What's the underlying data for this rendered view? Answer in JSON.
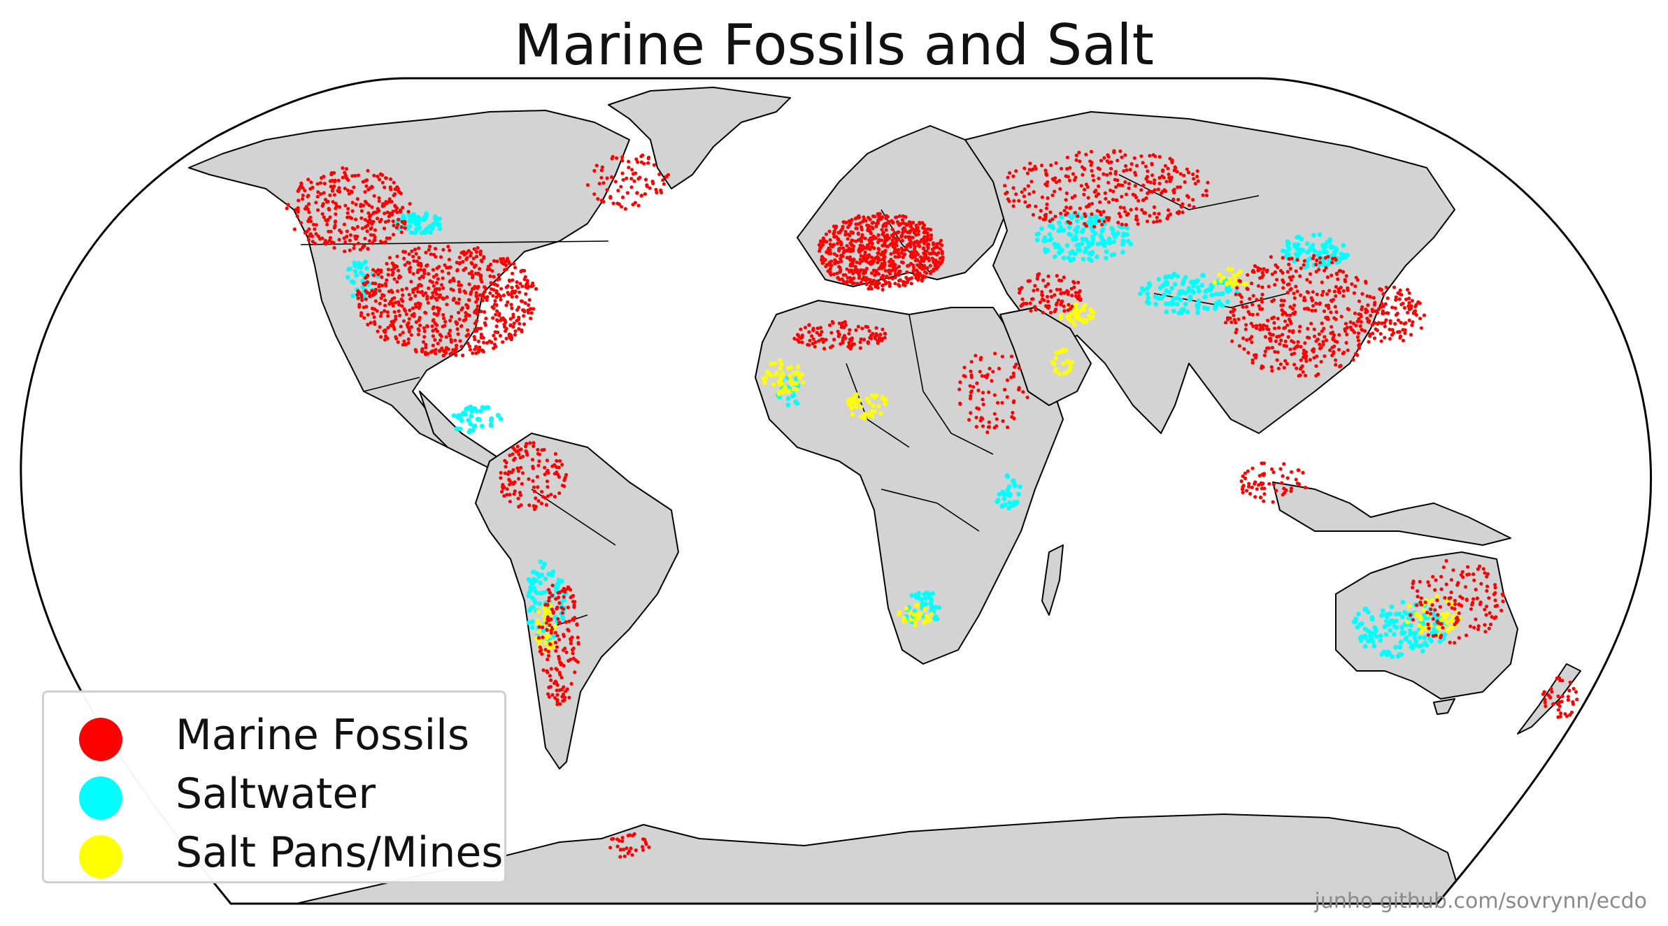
{
  "title": "Marine Fossils and Salt",
  "credit": "junho github.com/sovrynn/ecdo",
  "colors": {
    "land": "#d3d3d3",
    "ocean": "#ffffff",
    "border": "#000000",
    "marine_fossils": "#ff0000",
    "saltwater": "#00ffff",
    "salt_pans_mines": "#ffff00"
  },
  "legend": [
    {
      "label": "Marine Fossils",
      "color": "#ff0000"
    },
    {
      "label": "Saltwater",
      "color": "#00ffff"
    },
    {
      "label": "Salt Pans/Mines",
      "color": "#ffff00"
    }
  ],
  "projection": "Robinson (world)"
}
